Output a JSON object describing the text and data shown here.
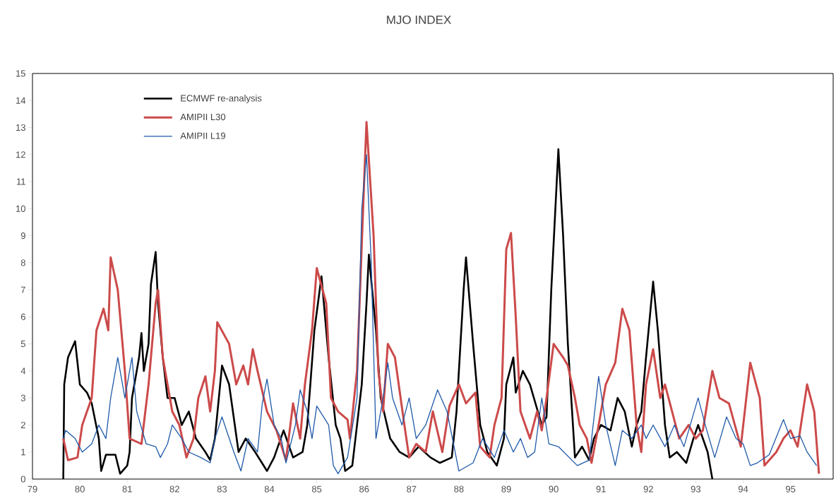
{
  "chart_data": {
    "type": "line",
    "title": "MJO INDEX",
    "xlim": [
      79,
      95.9
    ],
    "xticks": [
      79,
      80,
      81,
      82,
      83,
      84,
      85,
      86,
      87,
      88,
      89,
      90,
      91,
      92,
      93,
      94,
      95
    ],
    "ylim": [
      0,
      15
    ],
    "yticks": [
      0,
      1,
      2,
      3,
      4,
      5,
      6,
      7,
      8,
      9,
      10,
      11,
      12,
      13,
      14,
      15
    ],
    "grid": false,
    "legend": "top left",
    "marker": "none",
    "line_style": "solid",
    "series": [
      {
        "name": "ECMWF re-analysis",
        "color": "#000000",
        "x": [
          79.65,
          79.67,
          79.75,
          79.9,
          80.0,
          80.15,
          80.25,
          80.4,
          80.45,
          80.55,
          80.75,
          80.85,
          81.0,
          81.05,
          81.1,
          81.25,
          81.3,
          81.35,
          81.45,
          81.5,
          81.6,
          81.65,
          81.75,
          81.85,
          82.0,
          82.15,
          82.3,
          82.45,
          82.65,
          82.75,
          82.85,
          83.0,
          83.15,
          83.35,
          83.5,
          83.7,
          83.95,
          84.1,
          84.3,
          84.5,
          84.7,
          84.8,
          84.95,
          85.1,
          85.25,
          85.4,
          85.5,
          85.6,
          85.75,
          85.95,
          86.05,
          86.1,
          86.25,
          86.35,
          86.55,
          86.75,
          86.95,
          87.15,
          87.4,
          87.6,
          87.85,
          87.95,
          88.1,
          88.15,
          88.3,
          88.45,
          88.6,
          88.8,
          88.95,
          89.0,
          89.15,
          89.2,
          89.35,
          89.5,
          89.75,
          89.85,
          89.95,
          90.1,
          90.2,
          90.3,
          90.45,
          90.6,
          90.75,
          90.85,
          91.0,
          91.2,
          91.35,
          91.5,
          91.65,
          91.75,
          91.85,
          91.95,
          92.1,
          92.2,
          92.35,
          92.45,
          92.6,
          92.8,
          92.95,
          93.05,
          93.25,
          93.35
        ],
        "values": [
          0,
          3.5,
          4.5,
          5.1,
          3.5,
          3.2,
          2.8,
          1.5,
          0.3,
          0.9,
          0.9,
          0.2,
          0.5,
          1.0,
          3.0,
          4.5,
          5.4,
          4.0,
          5.0,
          7.2,
          8.4,
          6.5,
          4.5,
          3.0,
          3.0,
          2.0,
          2.5,
          1.5,
          1.0,
          0.7,
          1.5,
          4.2,
          3.5,
          1.0,
          1.5,
          1.0,
          0.3,
          0.8,
          1.8,
          0.8,
          1.0,
          2.0,
          5.5,
          7.5,
          4.5,
          2.0,
          1.5,
          0.3,
          0.5,
          3.5,
          6.5,
          8.3,
          5.5,
          3.0,
          1.5,
          1.0,
          0.8,
          1.2,
          0.8,
          0.6,
          0.8,
          2.5,
          7.0,
          8.2,
          5.0,
          2.0,
          1.0,
          0.5,
          1.5,
          3.5,
          4.5,
          3.2,
          4.0,
          3.5,
          2.0,
          2.3,
          7.0,
          12.2,
          9.0,
          5.0,
          0.8,
          1.2,
          0.7,
          1.5,
          2.0,
          1.8,
          3.0,
          2.5,
          1.2,
          2.0,
          2.5,
          4.5,
          7.3,
          5.5,
          2.0,
          0.8,
          1.0,
          0.6,
          1.5,
          2.0,
          1.0,
          0
        ]
      },
      {
        "name": "AMIPII L30",
        "color": "#cc4a4a",
        "x": [
          79.65,
          79.75,
          79.95,
          80.05,
          80.25,
          80.35,
          80.5,
          80.6,
          80.65,
          80.8,
          80.95,
          81.05,
          81.3,
          81.45,
          81.6,
          81.65,
          81.75,
          81.95,
          82.1,
          82.25,
          82.4,
          82.5,
          82.65,
          82.75,
          82.85,
          82.9,
          83.15,
          83.3,
          83.45,
          83.55,
          83.65,
          83.75,
          83.95,
          84.15,
          84.35,
          84.5,
          84.65,
          84.75,
          84.9,
          85.0,
          85.2,
          85.3,
          85.45,
          85.65,
          85.7,
          85.85,
          86.0,
          86.05,
          86.2,
          86.3,
          86.4,
          86.5,
          86.65,
          86.85,
          86.95,
          87.1,
          87.3,
          87.45,
          87.65,
          87.8,
          88.0,
          88.15,
          88.35,
          88.45,
          88.65,
          88.75,
          88.9,
          89.0,
          89.1,
          89.2,
          89.3,
          89.5,
          89.65,
          89.75,
          89.85,
          90.0,
          90.2,
          90.3,
          90.45,
          90.55,
          90.7,
          90.8,
          90.95,
          91.1,
          91.3,
          91.45,
          91.6,
          91.75,
          91.85,
          91.95,
          92.1,
          92.25,
          92.35,
          92.5,
          92.65,
          92.85,
          93.0,
          93.15,
          93.35,
          93.5,
          93.7,
          93.95,
          94.15,
          94.35,
          94.45,
          94.7,
          94.85,
          95.0,
          95.15,
          95.35,
          95.5,
          95.6
        ],
        "values": [
          1.5,
          0.7,
          0.8,
          2.0,
          3.0,
          5.5,
          6.3,
          5.5,
          8.2,
          7.0,
          4.0,
          1.5,
          1.3,
          3.5,
          6.5,
          7.0,
          4.5,
          2.5,
          2.0,
          0.8,
          1.5,
          3.0,
          3.8,
          2.5,
          4.0,
          5.8,
          5.0,
          3.5,
          4.2,
          3.5,
          4.8,
          4.0,
          2.5,
          1.8,
          0.7,
          2.8,
          1.5,
          3.5,
          5.5,
          7.8,
          6.5,
          3.0,
          2.5,
          2.2,
          1.5,
          4.0,
          11.0,
          13.2,
          9.0,
          4.0,
          2.5,
          5.0,
          4.5,
          2.0,
          0.8,
          1.3,
          1.0,
          2.5,
          1.0,
          2.7,
          3.5,
          2.8,
          3.2,
          1.2,
          0.8,
          2.0,
          3.0,
          8.5,
          9.1,
          6.0,
          2.5,
          1.5,
          2.5,
          1.8,
          3.0,
          5.0,
          4.5,
          4.2,
          3.0,
          2.0,
          1.5,
          0.6,
          2.0,
          3.5,
          4.3,
          6.3,
          5.5,
          2.0,
          1.0,
          3.5,
          4.8,
          3.0,
          3.5,
          2.5,
          1.5,
          2.0,
          1.5,
          1.8,
          4.0,
          3.0,
          2.8,
          1.2,
          4.3,
          3.0,
          0.5,
          1.0,
          1.5,
          1.8,
          1.2,
          3.5,
          2.5,
          0.2
        ]
      },
      {
        "name": "AMIPII L19",
        "color": "#1f5aa8",
        "x": [
          79.65,
          79.7,
          79.9,
          80.05,
          80.25,
          80.4,
          80.55,
          80.65,
          80.8,
          80.95,
          81.1,
          81.2,
          81.4,
          81.6,
          81.7,
          81.85,
          81.95,
          82.15,
          82.3,
          82.55,
          82.75,
          82.85,
          83.0,
          83.25,
          83.4,
          83.55,
          83.75,
          83.85,
          83.95,
          84.1,
          84.25,
          84.35,
          84.55,
          84.65,
          84.8,
          84.9,
          85.0,
          85.25,
          85.35,
          85.45,
          85.65,
          85.85,
          85.95,
          86.05,
          86.15,
          86.25,
          86.4,
          86.5,
          86.6,
          86.8,
          86.95,
          87.1,
          87.3,
          87.55,
          87.75,
          88.0,
          88.3,
          88.5,
          88.75,
          88.95,
          89.15,
          89.3,
          89.45,
          89.6,
          89.75,
          89.9,
          90.1,
          90.5,
          90.75,
          90.95,
          91.1,
          91.3,
          91.45,
          91.65,
          91.85,
          91.95,
          92.1,
          92.35,
          92.55,
          92.75,
          93.05,
          93.2,
          93.4,
          93.65,
          93.85,
          94.0,
          94.15,
          94.3,
          94.55,
          94.85,
          95.0,
          95.2,
          95.35,
          95.55
        ],
        "values": [
          1.5,
          1.8,
          1.5,
          1.0,
          1.3,
          2.0,
          1.5,
          3.0,
          4.5,
          3.0,
          4.5,
          2.5,
          1.3,
          1.2,
          0.8,
          1.3,
          2.0,
          1.5,
          1.0,
          0.8,
          0.6,
          1.5,
          2.3,
          1.0,
          0.3,
          1.5,
          1.0,
          2.8,
          3.7,
          2.0,
          1.5,
          0.6,
          2.0,
          3.3,
          2.5,
          1.5,
          2.7,
          2.0,
          0.5,
          0.2,
          0.8,
          3.0,
          10.0,
          12.0,
          8.0,
          1.5,
          3.0,
          4.3,
          3.0,
          2.0,
          3.0,
          1.5,
          2.0,
          3.3,
          2.5,
          0.3,
          0.6,
          1.5,
          0.8,
          1.8,
          1.0,
          1.5,
          0.8,
          1.0,
          3.0,
          1.3,
          1.2,
          0.5,
          0.7,
          3.8,
          2.0,
          0.5,
          1.8,
          1.5,
          2.0,
          1.5,
          2.0,
          1.2,
          2.0,
          1.2,
          3.0,
          2.0,
          0.8,
          2.3,
          1.5,
          1.3,
          0.5,
          0.6,
          0.9,
          2.2,
          1.5,
          1.6,
          1.0,
          0.5
        ]
      }
    ]
  }
}
